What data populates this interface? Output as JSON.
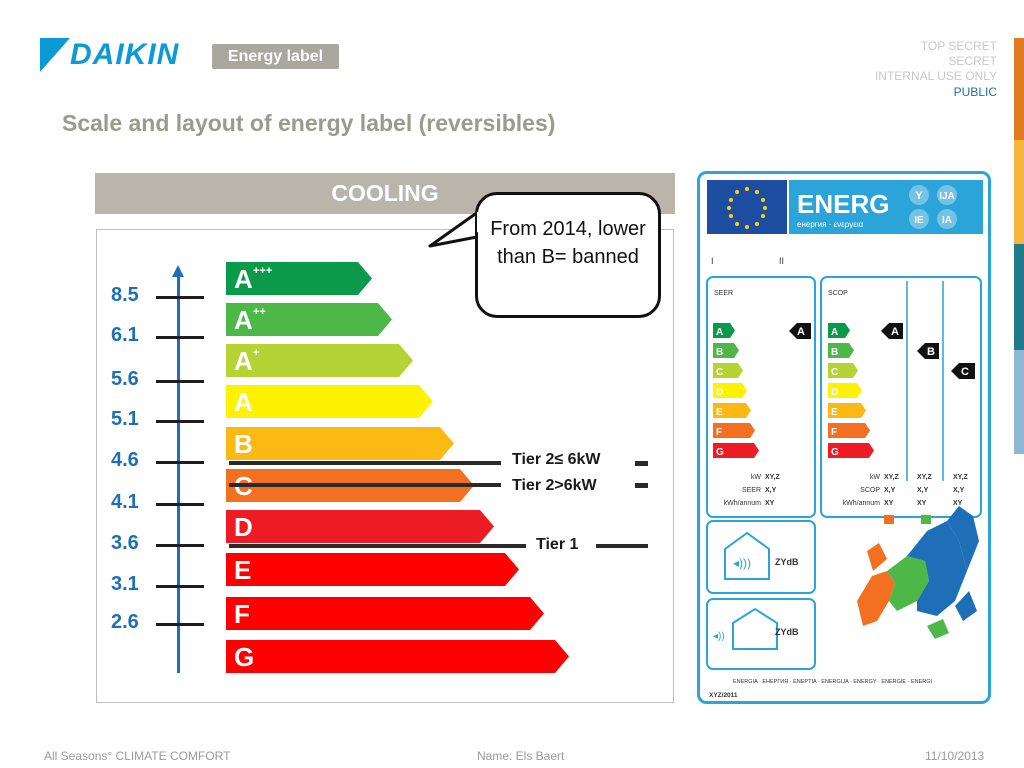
{
  "header": {
    "brand": "DAIKIN",
    "badge": "Energy label",
    "classification": [
      "TOP SECRET",
      "SECRET",
      "INTERNAL USE ONLY",
      "PUBLIC"
    ],
    "title": "Scale and layout of energy label (reversibles)"
  },
  "cooling": {
    "heading": "COOLING",
    "bars": [
      {
        "letter": "A",
        "sup": "+++",
        "color": "#0a9a4a"
      },
      {
        "letter": "A",
        "sup": "++",
        "color": "#4db848"
      },
      {
        "letter": "A",
        "sup": "+",
        "color": "#b5d334"
      },
      {
        "letter": "A",
        "sup": "",
        "color": "#fff200"
      },
      {
        "letter": "B",
        "sup": "",
        "color": "#fdb913"
      },
      {
        "letter": "C",
        "sup": "",
        "color": "#f37021"
      },
      {
        "letter": "D",
        "sup": "",
        "color": "#ed1c24"
      },
      {
        "letter": "E",
        "sup": "",
        "color": "#ff0000"
      },
      {
        "letter": "F",
        "sup": "",
        "color": "#ff0000"
      },
      {
        "letter": "G",
        "sup": "",
        "color": "#ff0000"
      }
    ],
    "scale": [
      "8.5",
      "6.1",
      "5.6",
      "5.1",
      "4.6",
      "4.1",
      "3.6",
      "3.1",
      "2.6"
    ],
    "tiers": {
      "tier2_small": "Tier 2≤ 6kW",
      "tier2_large": "Tier 2>6kW",
      "tier1": "Tier 1"
    },
    "bubble": "From 2014, lower than B= banned"
  },
  "eu_label": {
    "energy": "ENERG",
    "energy_sub": "енергия · ενεργεια",
    "lang_codes": [
      "Y",
      "IJA",
      "IE",
      "IA"
    ],
    "roman": [
      "I",
      "II"
    ],
    "seer": "SEER",
    "scop": "SCOP",
    "class_letters": [
      "A",
      "B",
      "C",
      "D",
      "E",
      "F",
      "G"
    ],
    "seer_spec_labels": [
      "kW",
      "SEER",
      "kWh/annum"
    ],
    "seer_spec_values": [
      "XY,Z",
      "X,Y",
      "XY"
    ],
    "scop_spec_labels": [
      "kW",
      "SCOP",
      "kWh/annum"
    ],
    "scop_col1": [
      "XY,Z",
      "X,Y",
      "XY"
    ],
    "scop_col2": [
      "XY,Z",
      "X,Y",
      "XY"
    ],
    "scop_col3": [
      "XY,Z",
      "X,Y",
      "XY"
    ],
    "noise_indoor": "ZYdB",
    "noise_outdoor": "ZYdB",
    "footer_line": "ENERGIA · ЕНЕРГИЯ · ENEPTIA · ENERGIJA · ENERGY · ENERGIE · ENERGI",
    "footer_code": "XYZ/2011"
  },
  "footer": {
    "left": "All Seasons° CLIMATE COMFORT",
    "center": "Name:  Els Baert",
    "right": "11/10/2013"
  }
}
